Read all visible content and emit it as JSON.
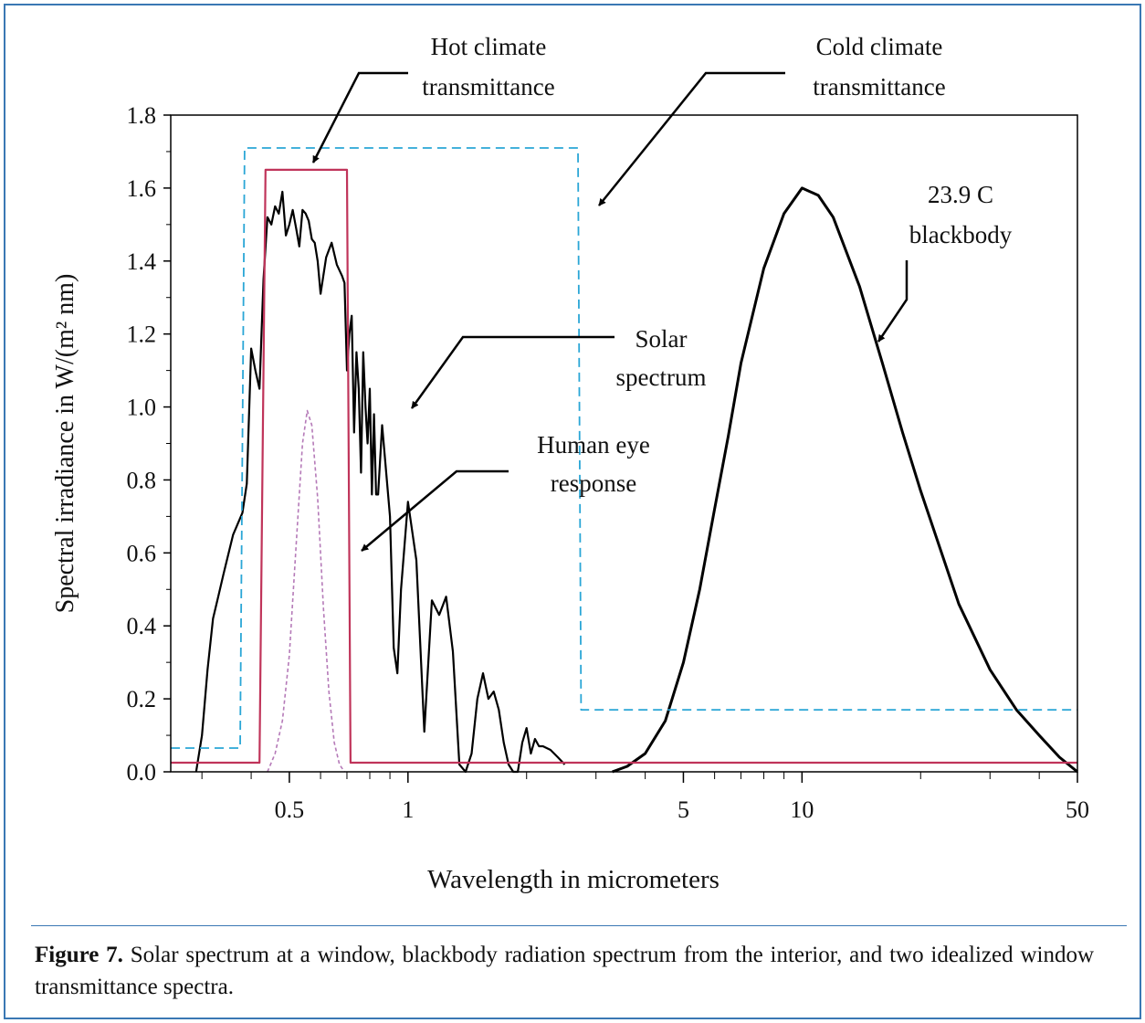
{
  "chart_data": {
    "type": "line",
    "xlabel": "Wavelength in micrometers",
    "ylabel": "Spectral irradiance in W/(m² nm)",
    "x_scale": "log",
    "xlim": [
      0.25,
      50
    ],
    "ylim": [
      0,
      1.8
    ],
    "x_ticks": [
      {
        "value": 0.5,
        "label": "0.5"
      },
      {
        "value": 1,
        "label": "1"
      },
      {
        "value": 5,
        "label": "5"
      },
      {
        "value": 10,
        "label": "10"
      },
      {
        "value": 50,
        "label": "50"
      }
    ],
    "y_ticks": [
      {
        "value": 0.0,
        "label": "0.0"
      },
      {
        "value": 0.2,
        "label": "0.2"
      },
      {
        "value": 0.4,
        "label": "0.4"
      },
      {
        "value": 0.6,
        "label": "0.6"
      },
      {
        "value": 0.8,
        "label": "0.8"
      },
      {
        "value": 1.0,
        "label": "1.0"
      },
      {
        "value": 1.2,
        "label": "1.2"
      },
      {
        "value": 1.4,
        "label": "1.4"
      },
      {
        "value": 1.6,
        "label": "1.6"
      },
      {
        "value": 1.8,
        "label": "1.8"
      }
    ],
    "grid": false,
    "legend": "none",
    "series": [
      {
        "key": "solar",
        "color": "#000000",
        "style": "solid",
        "x": [
          0.29,
          0.3,
          0.31,
          0.32,
          0.33,
          0.34,
          0.36,
          0.38,
          0.39,
          0.4,
          0.41,
          0.42,
          0.43,
          0.44,
          0.45,
          0.46,
          0.47,
          0.48,
          0.49,
          0.5,
          0.51,
          0.52,
          0.53,
          0.54,
          0.55,
          0.56,
          0.57,
          0.58,
          0.59,
          0.6,
          0.62,
          0.64,
          0.66,
          0.68,
          0.69,
          0.7,
          0.71,
          0.72,
          0.73,
          0.74,
          0.75,
          0.76,
          0.77,
          0.78,
          0.79,
          0.8,
          0.81,
          0.82,
          0.83,
          0.84,
          0.86,
          0.9,
          0.92,
          0.94,
          0.96,
          1.0,
          1.05,
          1.1,
          1.15,
          1.2,
          1.25,
          1.3,
          1.35,
          1.4,
          1.45,
          1.5,
          1.55,
          1.6,
          1.65,
          1.7,
          1.75,
          1.8,
          1.85,
          1.9,
          1.95,
          2.0,
          2.05,
          2.1,
          2.15,
          2.2,
          2.3,
          2.4,
          2.5
        ],
        "y": [
          0.0,
          0.1,
          0.28,
          0.42,
          0.48,
          0.54,
          0.65,
          0.71,
          0.79,
          1.16,
          1.1,
          1.05,
          1.35,
          1.52,
          1.5,
          1.55,
          1.53,
          1.59,
          1.47,
          1.5,
          1.54,
          1.49,
          1.44,
          1.54,
          1.53,
          1.51,
          1.46,
          1.45,
          1.4,
          1.31,
          1.41,
          1.45,
          1.39,
          1.36,
          1.34,
          1.1,
          1.2,
          1.25,
          0.93,
          1.15,
          1.05,
          0.82,
          1.15,
          1.0,
          0.9,
          1.05,
          0.76,
          0.98,
          0.76,
          0.76,
          0.95,
          0.7,
          0.34,
          0.27,
          0.5,
          0.74,
          0.58,
          0.11,
          0.47,
          0.43,
          0.48,
          0.33,
          0.02,
          0.0,
          0.05,
          0.2,
          0.27,
          0.2,
          0.22,
          0.17,
          0.08,
          0.02,
          0.0,
          0.0,
          0.08,
          0.12,
          0.05,
          0.09,
          0.07,
          0.07,
          0.06,
          0.04,
          0.02
        ]
      },
      {
        "key": "blackbody",
        "color": "#000000",
        "style": "solid",
        "x": [
          3.3,
          3.6,
          4,
          4.5,
          5,
          5.5,
          6,
          6.5,
          7,
          8,
          9,
          10,
          11,
          12,
          14,
          16,
          18,
          20,
          25,
          30,
          35,
          40,
          45,
          50
        ],
        "y": [
          0.0,
          0.015,
          0.05,
          0.14,
          0.3,
          0.5,
          0.72,
          0.92,
          1.12,
          1.38,
          1.53,
          1.6,
          1.58,
          1.52,
          1.33,
          1.12,
          0.93,
          0.77,
          0.46,
          0.28,
          0.17,
          0.1,
          0.04,
          0.0
        ]
      },
      {
        "key": "hot",
        "color": "#c0345a",
        "style": "solid",
        "x": [
          0.25,
          0.42,
          0.435,
          0.7,
          0.715,
          50
        ],
        "y": [
          0.025,
          0.025,
          1.65,
          1.65,
          0.025,
          0.025
        ]
      },
      {
        "key": "cold",
        "color": "#2aa6d6",
        "style": "dashed",
        "x": [
          0.25,
          0.375,
          0.385,
          2.7,
          2.75,
          50
        ],
        "y": [
          0.065,
          0.065,
          1.71,
          1.71,
          0.17,
          0.17
        ]
      },
      {
        "key": "eye",
        "color": "#b57ab8",
        "style": "dotted",
        "x": [
          0.44,
          0.46,
          0.48,
          0.5,
          0.52,
          0.54,
          0.555,
          0.57,
          0.59,
          0.61,
          0.63,
          0.65,
          0.67,
          0.69
        ],
        "y": [
          0.0,
          0.05,
          0.14,
          0.32,
          0.62,
          0.9,
          0.99,
          0.95,
          0.75,
          0.45,
          0.22,
          0.08,
          0.02,
          0.0
        ]
      }
    ],
    "annotations": [
      {
        "key": "hot",
        "lines": [
          "Hot climate",
          "transmittance"
        ]
      },
      {
        "key": "cold",
        "lines": [
          "Cold climate",
          "transmittance"
        ]
      },
      {
        "key": "bb",
        "lines": [
          "23.9 C",
          "blackbody"
        ]
      },
      {
        "key": "solar",
        "lines": [
          "Solar",
          "spectrum"
        ]
      },
      {
        "key": "eye",
        "lines": [
          "Human eye",
          "response"
        ]
      }
    ]
  },
  "caption": {
    "label": "Figure 7.",
    "text": "Solar spectrum at a window, blackbody radiation spectrum from the interior, and two idealized window transmittance spectra."
  }
}
